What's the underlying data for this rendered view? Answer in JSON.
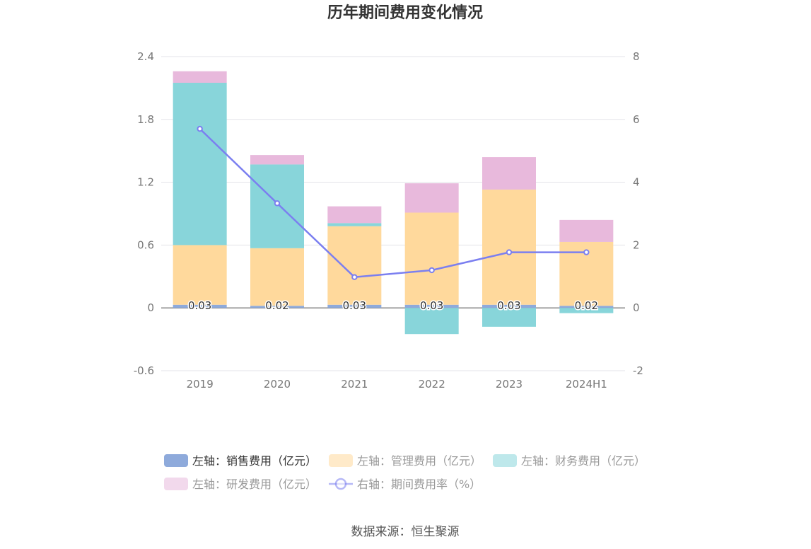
{
  "chart_data": {
    "type": "bar",
    "title": "历年期间费用变化情况",
    "categories": [
      "2019",
      "2020",
      "2021",
      "2022",
      "2023",
      "2024H1"
    ],
    "stacked": true,
    "left_axis": {
      "min": -0.6,
      "max": 2.4,
      "ticks": [
        "-0.6",
        "0",
        "0.6",
        "1.2",
        "1.8",
        "2.4"
      ]
    },
    "right_axis": {
      "min": -2,
      "max": 8,
      "ticks": [
        "-2",
        "0",
        "2",
        "4",
        "6",
        "8"
      ]
    },
    "series": [
      {
        "name": "左轴：销售费用（亿元）",
        "axis": "left",
        "type": "bar",
        "color": "#8eaadb",
        "values": [
          0.03,
          0.02,
          0.03,
          0.03,
          0.03,
          0.02
        ],
        "labels": [
          "0.03",
          "0.02",
          "0.03",
          "0.03",
          "0.03",
          "0.02"
        ]
      },
      {
        "name": "左轴：管理费用（亿元）",
        "axis": "left",
        "type": "bar",
        "color": "#ffd99c",
        "values": [
          0.57,
          0.55,
          0.75,
          0.88,
          1.1,
          0.61
        ]
      },
      {
        "name": "左轴：财务费用（亿元）",
        "axis": "left",
        "type": "bar",
        "color": "#88d5da",
        "values": [
          1.55,
          0.8,
          0.03,
          -0.25,
          -0.18,
          -0.05
        ]
      },
      {
        "name": "左轴：研发费用（亿元）",
        "axis": "left",
        "type": "bar",
        "color": "#e8b9dc",
        "values": [
          0.11,
          0.09,
          0.16,
          0.28,
          0.31,
          0.21
        ]
      },
      {
        "name": "右轴：期间费用率（%）",
        "axis": "right",
        "type": "line",
        "color": "#7b7ff0",
        "values": [
          5.7,
          3.33,
          0.98,
          1.2,
          1.77,
          1.77
        ]
      }
    ],
    "legend_position": "bottom",
    "source": "数据来源：恒生聚源"
  }
}
